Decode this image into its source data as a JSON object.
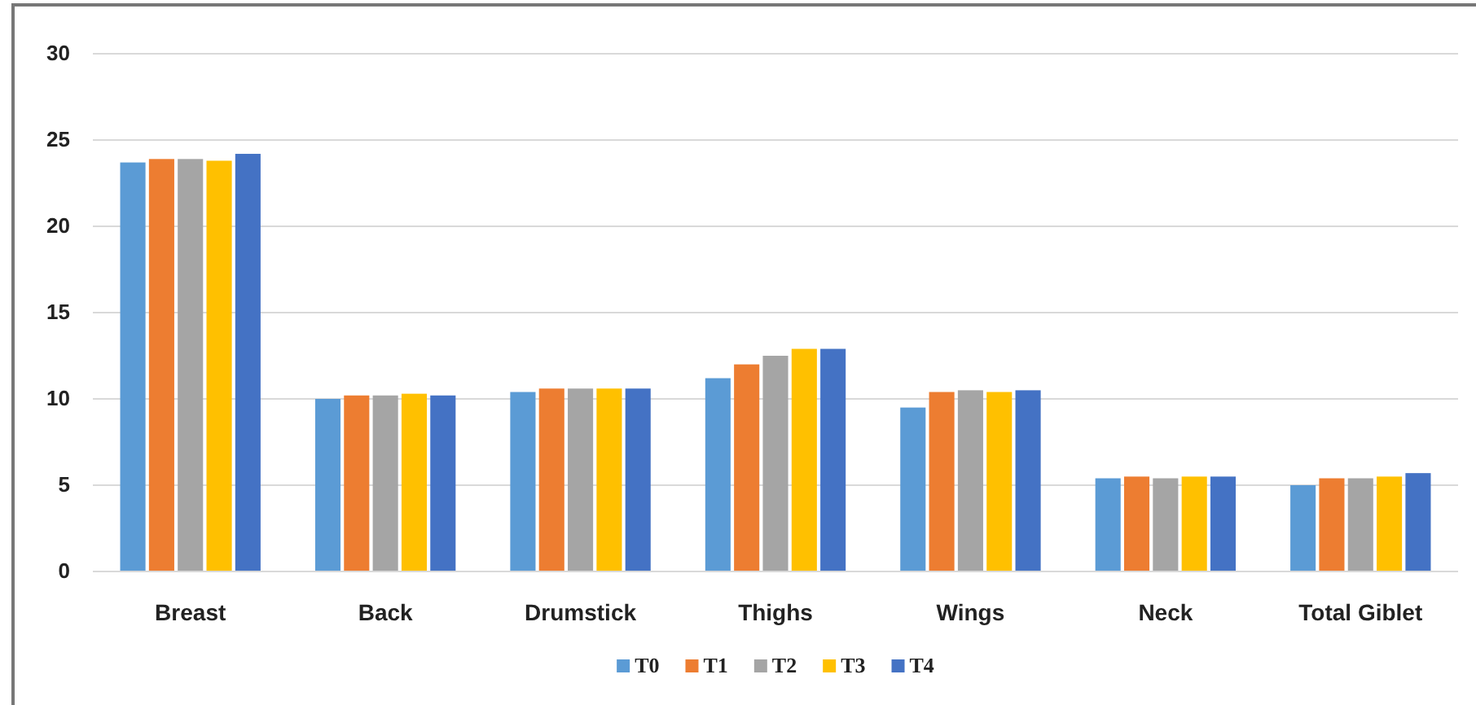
{
  "chart_data": {
    "type": "bar",
    "categories": [
      "Breast",
      "Back",
      "Drumstick",
      "Thighs",
      "Wings",
      "Neck",
      "Total Giblet"
    ],
    "series": [
      {
        "name": "T0",
        "color": "#5b9bd5",
        "values": [
          23.7,
          10.0,
          10.4,
          11.2,
          9.5,
          5.4,
          5.0
        ]
      },
      {
        "name": "T1",
        "color": "#ed7d31",
        "values": [
          23.9,
          10.2,
          10.6,
          12.0,
          10.4,
          5.5,
          5.4
        ]
      },
      {
        "name": "T2",
        "color": "#a5a5a5",
        "values": [
          23.9,
          10.2,
          10.6,
          12.5,
          10.5,
          5.4,
          5.4
        ]
      },
      {
        "name": "T3",
        "color": "#ffc000",
        "values": [
          23.8,
          10.3,
          10.6,
          12.9,
          10.4,
          5.5,
          5.5
        ]
      },
      {
        "name": "T4",
        "color": "#4472c4",
        "values": [
          24.2,
          10.2,
          10.6,
          12.9,
          10.5,
          5.5,
          5.7
        ]
      }
    ],
    "ylim": [
      0,
      30
    ],
    "yticks": [
      0,
      5,
      10,
      15,
      20,
      25,
      30
    ],
    "grid": "y",
    "legend": "bottom"
  }
}
